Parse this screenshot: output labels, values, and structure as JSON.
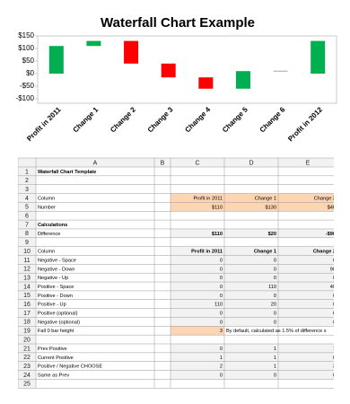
{
  "chart_data": {
    "type": "waterfall",
    "title": "Waterfall Chart Example",
    "categories": [
      "Profit in 2011",
      "Change 1",
      "Change 2",
      "Change 3",
      "Change 4",
      "Change 5",
      "Change 6",
      "Profit in 2012"
    ],
    "values": [
      110,
      20,
      -90,
      -55,
      -45,
      70,
      0,
      130
    ],
    "is_total": [
      true,
      false,
      false,
      false,
      false,
      false,
      false,
      true
    ],
    "colors": {
      "up": "#00b050",
      "down": "#ff0000",
      "zero": "#a6a6a6"
    },
    "ylim": [
      -100,
      150
    ],
    "yticks": [
      {
        "value": -100,
        "label": "-$100"
      },
      {
        "value": -50,
        "label": "-$50"
      },
      {
        "value": 0,
        "label": "$0"
      },
      {
        "value": 50,
        "label": "$50"
      },
      {
        "value": 100,
        "label": "$100"
      },
      {
        "value": 150,
        "label": "$150"
      }
    ],
    "grid": false
  },
  "sheet": {
    "columns": [
      "A",
      "B",
      "C",
      "D",
      "E"
    ],
    "rows": [
      {
        "n": 1,
        "cells": [
          "Waterfall Chart Template",
          null,
          null,
          null,
          null
        ]
      },
      {
        "n": 2,
        "cells": [
          null,
          null,
          null,
          null,
          null
        ]
      },
      {
        "n": 3,
        "cells": [
          null,
          null,
          null,
          null,
          null
        ]
      },
      {
        "n": 4,
        "cells": [
          "Column",
          null,
          "Profit in 2011",
          "Change 1",
          "Change 2"
        ]
      },
      {
        "n": 5,
        "cells": [
          "Number",
          null,
          "$110",
          "$130",
          "$40"
        ]
      },
      {
        "n": 6,
        "cells": [
          null,
          null,
          null,
          null,
          null
        ]
      },
      {
        "n": 7,
        "cells": [
          "Calculations",
          null,
          null,
          null,
          null
        ]
      },
      {
        "n": 8,
        "cells": [
          "Difference",
          null,
          "$110",
          "$20",
          "-$90"
        ]
      },
      {
        "n": 9,
        "cells": [
          null,
          null,
          null,
          null,
          null
        ]
      },
      {
        "n": 10,
        "cells": [
          "Column",
          null,
          "Profit in 2011",
          "Change 1",
          "Change 2"
        ]
      },
      {
        "n": 11,
        "cells": [
          "Negative - Space",
          null,
          0,
          0,
          0
        ]
      },
      {
        "n": 12,
        "cells": [
          "Negative - Down",
          null,
          0,
          0,
          90
        ]
      },
      {
        "n": 13,
        "cells": [
          "Negative - Up",
          null,
          0,
          0,
          0
        ]
      },
      {
        "n": 14,
        "cells": [
          "Positive - Space",
          null,
          0,
          110,
          40
        ]
      },
      {
        "n": 15,
        "cells": [
          "Positive - Down",
          null,
          0,
          0,
          0
        ]
      },
      {
        "n": 16,
        "cells": [
          "Positive - Up",
          null,
          110,
          20,
          0
        ]
      },
      {
        "n": 17,
        "cells": [
          "Positive (optional)",
          null,
          0,
          0,
          0
        ]
      },
      {
        "n": 18,
        "cells": [
          "Negative (optional)",
          null,
          0,
          0,
          0
        ]
      },
      {
        "n": 19,
        "cells": [
          "Fall 0 bar height",
          null,
          3,
          "By default, calculated as 1.5% of difference s",
          null
        ]
      },
      {
        "n": 20,
        "cells": [
          null,
          null,
          null,
          null,
          null
        ]
      },
      {
        "n": 21,
        "cells": [
          "Prev Positive",
          null,
          0,
          1,
          1
        ]
      },
      {
        "n": 22,
        "cells": [
          "Current Positive",
          null,
          1,
          1,
          0
        ]
      },
      {
        "n": 23,
        "cells": [
          "Positive / Negative CHOOSE",
          null,
          2,
          1,
          3
        ]
      },
      {
        "n": 24,
        "cells": [
          "Same as Prev",
          null,
          0,
          0,
          0
        ]
      },
      {
        "n": 25,
        "cells": [
          null,
          null,
          null,
          null,
          null
        ]
      }
    ]
  }
}
